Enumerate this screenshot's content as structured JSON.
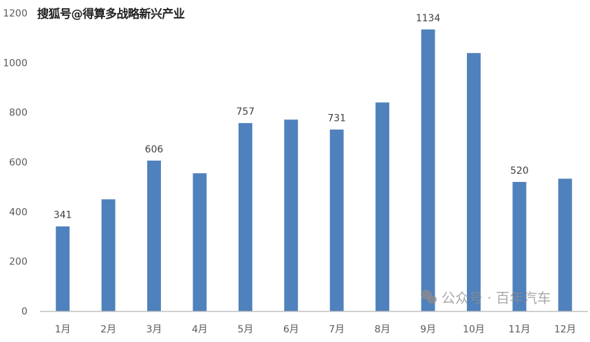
{
  "chart_data": {
    "type": "bar",
    "title": "",
    "xlabel": "",
    "ylabel": "",
    "categories": [
      "1月",
      "2月",
      "3月",
      "4月",
      "5月",
      "6月",
      "7月",
      "8月",
      "9月",
      "10月",
      "11月",
      "12月"
    ],
    "values": [
      341,
      450,
      606,
      555,
      757,
      771,
      731,
      840,
      1134,
      1039,
      520,
      533
    ],
    "data_labels": {
      "0": "341",
      "2": "606",
      "4": "757",
      "6": "731",
      "8": "1134",
      "10": "520"
    },
    "ylim": [
      0,
      1200
    ],
    "yticks": [
      "0",
      "200",
      "400",
      "600",
      "800",
      "1000",
      "1200"
    ],
    "grid": false,
    "bar_color": "#4f81bd",
    "axis_color": "#bfbfbf"
  },
  "watermarks": {
    "top": "搜狐号@得算多战略新兴产业",
    "bottom": "公众号 · 百年汽车"
  }
}
